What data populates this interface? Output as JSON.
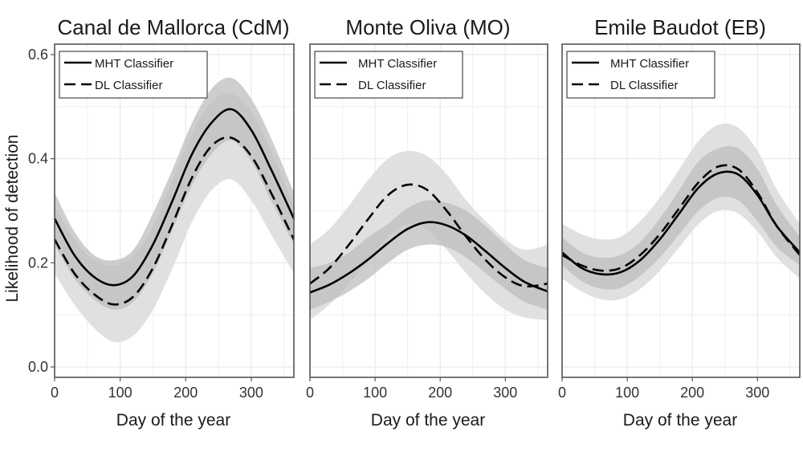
{
  "figure": {
    "ylabel": "Likelihood of detection",
    "legend_position": "top-left"
  },
  "colors": {
    "ci_outer": "#e0e0e0",
    "ci_inner": "#bdbdbd",
    "grid": "#ececec",
    "line": "#000000",
    "frame": "#555555"
  },
  "chart_data": [
    {
      "type": "line",
      "title": "Canal de Mallorca (CdM)",
      "xlabel": "Day of the year",
      "ylabel": "Likelihood of detection",
      "xlim": [
        0,
        365
      ],
      "ylim": [
        -0.02,
        0.62
      ],
      "xticks": [
        0,
        100,
        200,
        300
      ],
      "yticks": [
        0.0,
        0.2,
        0.4,
        0.6
      ],
      "ytick_labels": [
        "0.0",
        "0.2",
        "0.4",
        "0.6"
      ],
      "show_yticks": true,
      "x": [
        0,
        30,
        60,
        90,
        120,
        150,
        180,
        210,
        240,
        270,
        300,
        330,
        365
      ],
      "series": [
        {
          "name": "MHT Classifier",
          "style": "solid",
          "values": [
            0.285,
            0.215,
            0.173,
            0.157,
            0.175,
            0.235,
            0.32,
            0.41,
            0.47,
            0.495,
            0.455,
            0.38,
            0.285
          ],
          "band": [
            [
              0.235,
              0.335
            ],
            [
              0.17,
              0.26
            ],
            [
              0.13,
              0.215
            ],
            [
              0.11,
              0.205
            ],
            [
              0.125,
              0.225
            ],
            [
              0.18,
              0.295
            ],
            [
              0.265,
              0.38
            ],
            [
              0.35,
              0.47
            ],
            [
              0.41,
              0.535
            ],
            [
              0.435,
              0.555
            ],
            [
              0.395,
              0.515
            ],
            [
              0.32,
              0.44
            ],
            [
              0.235,
              0.335
            ]
          ]
        },
        {
          "name": "DL Classifier",
          "style": "dashed",
          "values": [
            0.245,
            0.18,
            0.14,
            0.12,
            0.135,
            0.19,
            0.275,
            0.365,
            0.425,
            0.44,
            0.405,
            0.335,
            0.245
          ],
          "band": [
            [
              0.18,
              0.31
            ],
            [
              0.12,
              0.245
            ],
            [
              0.075,
              0.205
            ],
            [
              0.048,
              0.195
            ],
            [
              0.06,
              0.215
            ],
            [
              0.11,
              0.27
            ],
            [
              0.19,
              0.36
            ],
            [
              0.28,
              0.45
            ],
            [
              0.34,
              0.51
            ],
            [
              0.36,
              0.525
            ],
            [
              0.32,
              0.49
            ],
            [
              0.255,
              0.415
            ],
            [
              0.18,
              0.31
            ]
          ]
        }
      ]
    },
    {
      "type": "line",
      "title": "Monte Oliva (MO)",
      "xlabel": "Day of the year",
      "ylabel": "",
      "xlim": [
        0,
        365
      ],
      "ylim": [
        -0.02,
        0.62
      ],
      "xticks": [
        0,
        100,
        200,
        300
      ],
      "yticks": [
        0.0,
        0.2,
        0.4,
        0.6
      ],
      "ytick_labels": [],
      "show_yticks": false,
      "x": [
        0,
        30,
        60,
        90,
        120,
        150,
        180,
        210,
        240,
        270,
        300,
        330,
        365
      ],
      "series": [
        {
          "name": "MHT Classifier",
          "style": "solid",
          "values": [
            0.143,
            0.158,
            0.18,
            0.207,
            0.238,
            0.265,
            0.278,
            0.272,
            0.252,
            0.222,
            0.19,
            0.163,
            0.145
          ],
          "band": [
            [
              0.11,
              0.19
            ],
            [
              0.125,
              0.2
            ],
            [
              0.145,
              0.22
            ],
            [
              0.17,
              0.25
            ],
            [
              0.2,
              0.275
            ],
            [
              0.225,
              0.305
            ],
            [
              0.235,
              0.32
            ],
            [
              0.23,
              0.315
            ],
            [
              0.21,
              0.3
            ],
            [
              0.18,
              0.27
            ],
            [
              0.15,
              0.235
            ],
            [
              0.125,
              0.205
            ],
            [
              0.11,
              0.19
            ]
          ]
        },
        {
          "name": "DL Classifier",
          "style": "dashed",
          "values": [
            0.16,
            0.19,
            0.235,
            0.285,
            0.33,
            0.35,
            0.34,
            0.3,
            0.25,
            0.205,
            0.172,
            0.155,
            0.16
          ],
          "band": [
            [
              0.09,
              0.235
            ],
            [
              0.12,
              0.265
            ],
            [
              0.16,
              0.31
            ],
            [
              0.205,
              0.36
            ],
            [
              0.25,
              0.4
            ],
            [
              0.275,
              0.415
            ],
            [
              0.265,
              0.405
            ],
            [
              0.225,
              0.37
            ],
            [
              0.18,
              0.32
            ],
            [
              0.14,
              0.28
            ],
            [
              0.11,
              0.245
            ],
            [
              0.095,
              0.225
            ],
            [
              0.09,
              0.235
            ]
          ]
        }
      ]
    },
    {
      "type": "line",
      "title": "Emile Baudot (EB)",
      "xlabel": "Day of the year",
      "ylabel": "",
      "xlim": [
        0,
        365
      ],
      "ylim": [
        -0.02,
        0.62
      ],
      "xticks": [
        0,
        100,
        200,
        300
      ],
      "yticks": [
        0.0,
        0.2,
        0.4,
        0.6
      ],
      "ytick_labels": [],
      "show_yticks": false,
      "x": [
        0,
        30,
        60,
        90,
        120,
        150,
        180,
        210,
        240,
        270,
        300,
        330,
        365
      ],
      "series": [
        {
          "name": "MHT Classifier",
          "style": "solid",
          "values": [
            0.22,
            0.19,
            0.178,
            0.182,
            0.205,
            0.245,
            0.295,
            0.345,
            0.372,
            0.37,
            0.33,
            0.27,
            0.22
          ],
          "band": [
            [
              0.195,
              0.25
            ],
            [
              0.165,
              0.22
            ],
            [
              0.15,
              0.21
            ],
            [
              0.152,
              0.215
            ],
            [
              0.175,
              0.24
            ],
            [
              0.21,
              0.285
            ],
            [
              0.255,
              0.34
            ],
            [
              0.3,
              0.395
            ],
            [
              0.325,
              0.42
            ],
            [
              0.32,
              0.42
            ],
            [
              0.28,
              0.38
            ],
            [
              0.23,
              0.31
            ],
            [
              0.195,
              0.25
            ]
          ]
        },
        {
          "name": "DL Classifier",
          "style": "dashed",
          "values": [
            0.215,
            0.195,
            0.185,
            0.19,
            0.215,
            0.255,
            0.305,
            0.355,
            0.385,
            0.38,
            0.335,
            0.27,
            0.215
          ],
          "band": [
            [
              0.17,
              0.275
            ],
            [
              0.145,
              0.255
            ],
            [
              0.13,
              0.245
            ],
            [
              0.13,
              0.25
            ],
            [
              0.15,
              0.28
            ],
            [
              0.185,
              0.325
            ],
            [
              0.23,
              0.38
            ],
            [
              0.275,
              0.435
            ],
            [
              0.3,
              0.465
            ],
            [
              0.295,
              0.46
            ],
            [
              0.26,
              0.415
            ],
            [
              0.21,
              0.34
            ],
            [
              0.17,
              0.275
            ]
          ]
        }
      ]
    }
  ]
}
